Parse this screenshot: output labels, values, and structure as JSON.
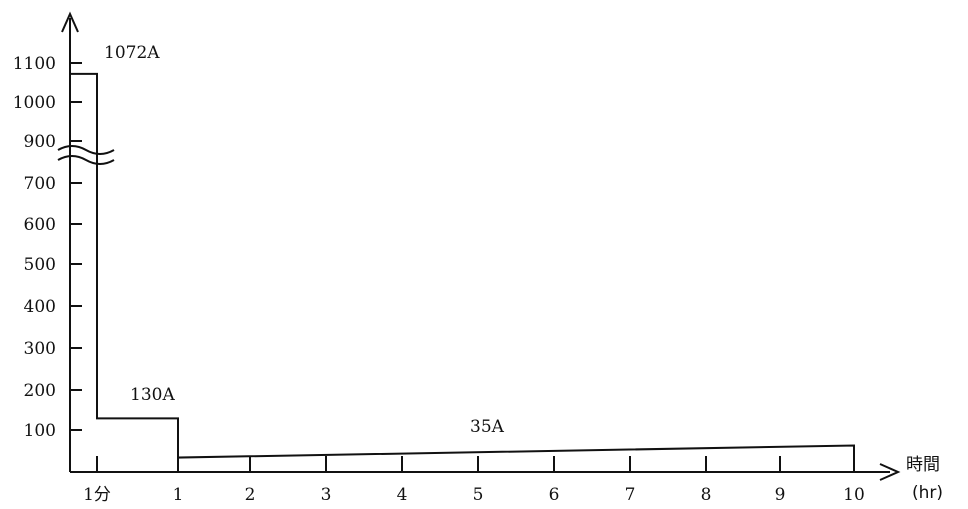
{
  "chart_data": {
    "type": "line",
    "title": "",
    "xlabel": "時間",
    "xlabel_unit": "(hr)",
    "ylabel": "",
    "y_ticks": [
      "100",
      "200",
      "300",
      "400",
      "500",
      "600",
      "700",
      "900",
      "1000",
      "1100"
    ],
    "x_ticks": [
      "1分",
      "1",
      "2",
      "3",
      "4",
      "5",
      "6",
      "7",
      "8",
      "9",
      "10"
    ],
    "axis_break": "between 700 and 900",
    "series": [
      {
        "points": [
          {
            "x": "0",
            "y": 1072
          },
          {
            "x": "1分",
            "y": 1072
          },
          {
            "x": "1分",
            "y": 130
          },
          {
            "x": "1",
            "y": 130
          },
          {
            "x": "1",
            "y": 35
          },
          {
            "x": "10",
            "y": 35
          }
        ]
      }
    ],
    "annotations": [
      "1072A",
      "130A",
      "35A"
    ],
    "grid": false,
    "color": "#111111"
  }
}
